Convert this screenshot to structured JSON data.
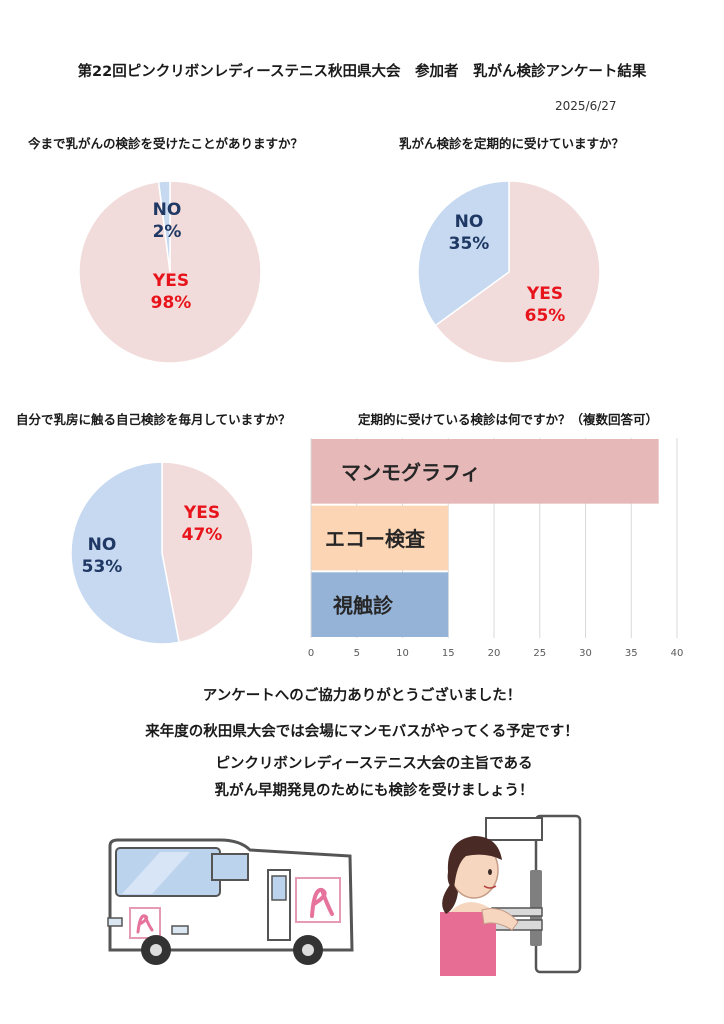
{
  "header": {
    "title": "第22回ピンクリボンレディーステニス秋田県大会　参加者　乳がん検診アンケート結果",
    "date": "2025/6/27"
  },
  "colors": {
    "pink": "#f2dcdb",
    "blue": "#c6d9f1",
    "red": "#e8141c",
    "navy": "#1f3864"
  },
  "chart_data": [
    {
      "type": "pie",
      "title": "今まで乳がんの検診を受けたことがありますか？",
      "slices": [
        {
          "label": "YES",
          "value": 98,
          "pct_label": "98%"
        },
        {
          "label": "NO",
          "value": 2,
          "pct_label": "2%"
        }
      ]
    },
    {
      "type": "pie",
      "title": "乳がん検診を定期的に受けていますか？",
      "slices": [
        {
          "label": "YES",
          "value": 65,
          "pct_label": "65%"
        },
        {
          "label": "NO",
          "value": 35,
          "pct_label": "35%"
        }
      ]
    },
    {
      "type": "pie",
      "title": "自分で乳房に触る自己検診を毎月していますか？",
      "slices": [
        {
          "label": "YES",
          "value": 47,
          "pct_label": "47%"
        },
        {
          "label": "NO",
          "value": 53,
          "pct_label": "53%"
        }
      ]
    },
    {
      "type": "bar",
      "orientation": "horizontal",
      "title": "定期的に受けている検診は何ですか？（複数回答可）",
      "categories": [
        "マンモグラフィ",
        "エコー検査",
        "視触診"
      ],
      "values": [
        38,
        15,
        15
      ],
      "bar_colors": [
        "#e6b9b8",
        "#fcd5b5",
        "#95b3d7"
      ],
      "xlim": [
        0,
        40
      ],
      "xticks": [
        "0",
        "5",
        "10",
        "15",
        "20",
        "25",
        "30",
        "35",
        "40"
      ],
      "grid": true
    }
  ],
  "messages": [
    "アンケートへのご協力ありがとうございました！",
    "来年度の秋田県大会では会場にマンモバスがやってくる予定です！",
    "ピンクリボンレディーステニス大会の主旨である",
    "乳がん早期発見のためにも検診を受けましょう！"
  ],
  "illustrations": [
    "mammography-bus-illustration",
    "mammography-exam-illustration"
  ]
}
